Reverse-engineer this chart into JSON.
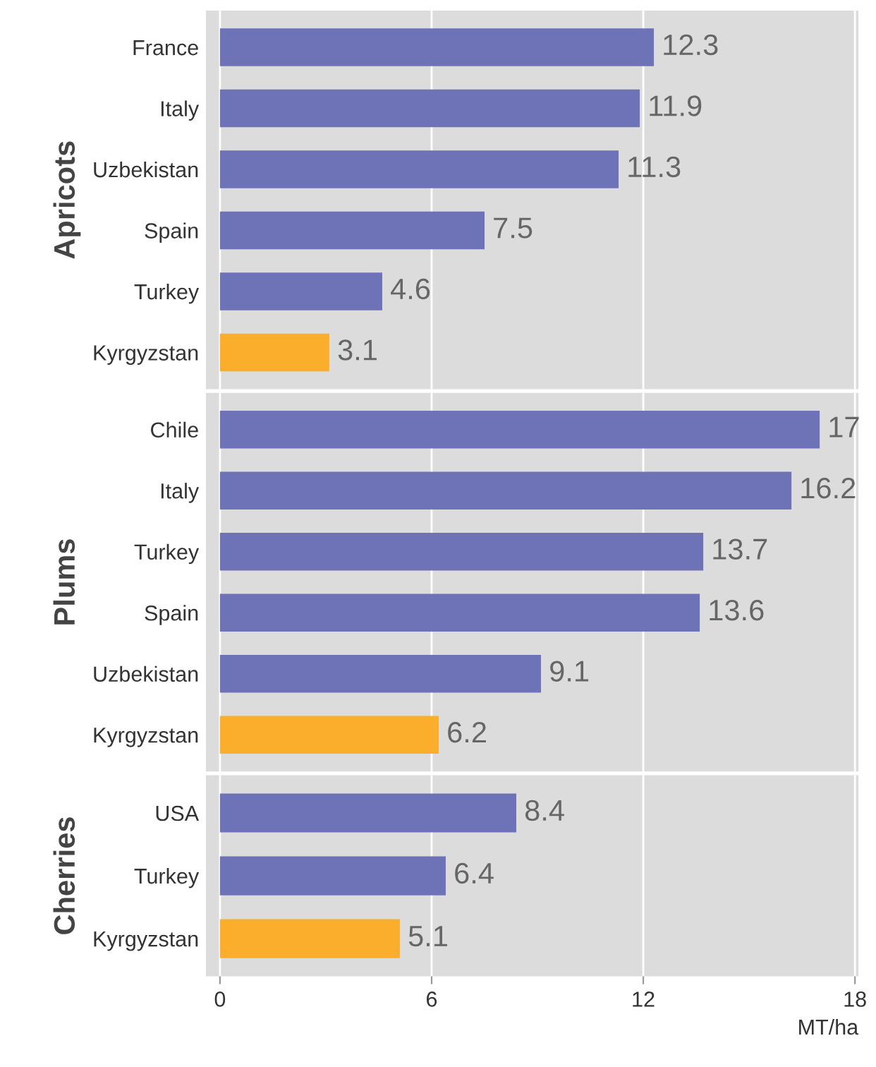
{
  "chart_data": [
    {
      "type": "bar",
      "orientation": "horizontal",
      "ylabel": "Apricots",
      "categories": [
        "France",
        "Italy",
        "Uzbekistan",
        "Spain",
        "Turkey",
        "Kyrgyzstan"
      ],
      "values": [
        12.3,
        11.9,
        11.3,
        7.5,
        4.6,
        3.1
      ],
      "colors": [
        "#6e73b8",
        "#6e73b8",
        "#6e73b8",
        "#6e73b8",
        "#6e73b8",
        "#fbae2c"
      ],
      "data_labels": true,
      "xlim": [
        -0.4,
        18.1
      ],
      "xticks": [
        0,
        6,
        12,
        18
      ],
      "grid": "x",
      "tick_labels": "y"
    },
    {
      "type": "bar",
      "orientation": "horizontal",
      "ylabel": "Plums",
      "categories": [
        "Chile",
        "Italy",
        "Turkey",
        "Spain",
        "Uzbekistan",
        "Kyrgyzstan"
      ],
      "values": [
        17,
        16.2,
        13.7,
        13.6,
        9.1,
        6.2
      ],
      "colors": [
        "#6e73b8",
        "#6e73b8",
        "#6e73b8",
        "#6e73b8",
        "#6e73b8",
        "#fbae2c"
      ],
      "data_labels": true,
      "xlim": [
        -0.4,
        18.1
      ],
      "xticks": [
        0,
        6,
        12,
        18
      ],
      "grid": "x",
      "tick_labels": "y"
    },
    {
      "type": "bar",
      "orientation": "horizontal",
      "ylabel": "Cherries",
      "xlabel": "MT/ha",
      "categories": [
        "USA",
        "Turkey",
        "Kyrgyzstan"
      ],
      "values": [
        8.4,
        6.4,
        5.1
      ],
      "colors": [
        "#6e73b8",
        "#6e73b8",
        "#fbae2c"
      ],
      "data_labels": true,
      "xlim": [
        -0.4,
        18.1
      ],
      "xticks": [
        0,
        6,
        12,
        18
      ],
      "grid": "x"
    }
  ]
}
